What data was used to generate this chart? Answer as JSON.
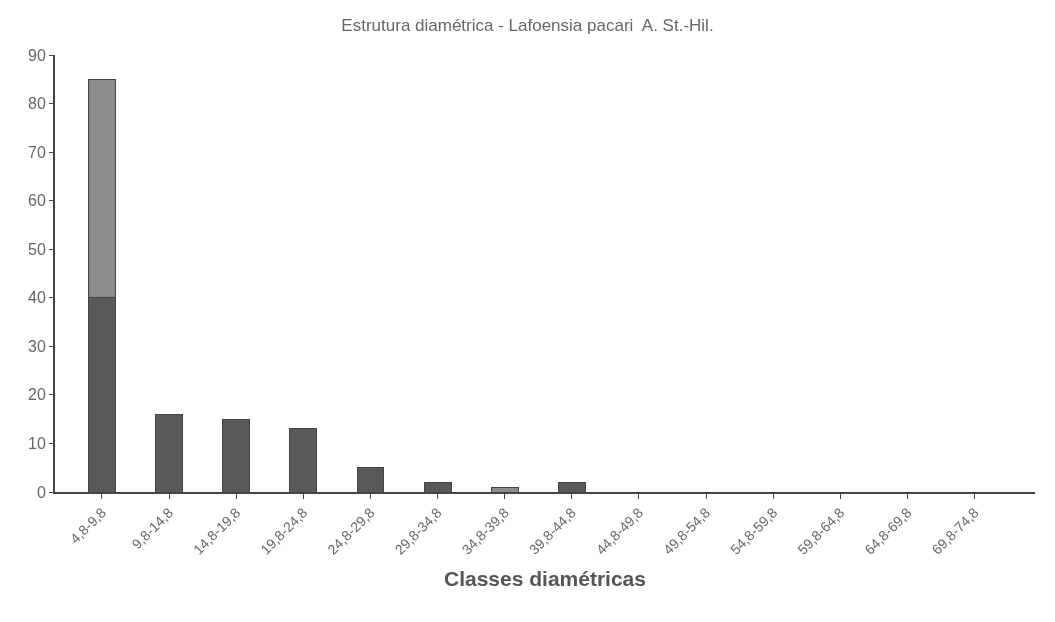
{
  "chart_data": {
    "type": "bar",
    "title": "Estrutura diamétrica - Lafoensia pacari  A. St.-Hil.",
    "xlabel": "Classes diamétricas",
    "categories": [
      "4,8-9,8",
      "9,8-14,8",
      "14,8-19,8",
      "19,8-24,8",
      "24,8-29,8",
      "29,8-34,8",
      "34,8-39,8",
      "39,8-44,8",
      "44,8-49,8",
      "49,8-54,8",
      "54,8-59,8",
      "59,8-64,8",
      "64,8-69,8",
      "69,8-74,8"
    ],
    "stacked": true,
    "series": [
      {
        "color": "#595959",
        "values": [
          40,
          16,
          15,
          13,
          5,
          2,
          0,
          2,
          0,
          0,
          0,
          0,
          0,
          0
        ]
      },
      {
        "color": "#8c8c8c",
        "values": [
          45,
          0,
          0,
          0,
          0,
          0,
          1,
          0,
          0,
          0,
          0,
          0,
          0,
          0
        ]
      }
    ],
    "ylim": [
      0,
      90
    ],
    "yticks": [
      0,
      10,
      20,
      30,
      40,
      50,
      60,
      70,
      80,
      90
    ],
    "grid": false
  }
}
